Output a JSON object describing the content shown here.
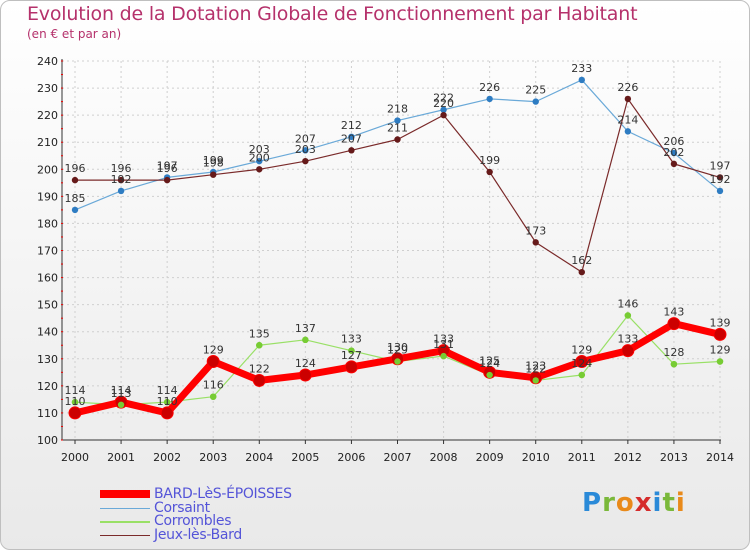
{
  "header": {
    "title": "Evolution de la Dotation Globale de Fonctionnement par Habitant",
    "subtitle": "(en € et par an)"
  },
  "logo": {
    "text": "Proxiti",
    "colors": [
      "#2a8ad8",
      "#7ab83a",
      "#e98a1a",
      "#d52c2c",
      "#2a8ad8",
      "#7ab83a",
      "#e98a1a"
    ]
  },
  "chart_data": {
    "type": "line",
    "x": [
      "2000",
      "2001",
      "2002",
      "2003",
      "2004",
      "2005",
      "2006",
      "2007",
      "2008",
      "2009",
      "2010",
      "2011",
      "2012",
      "2013",
      "2014"
    ],
    "ylim": [
      100,
      240
    ],
    "yticks": [
      100,
      110,
      120,
      130,
      140,
      150,
      160,
      170,
      180,
      190,
      200,
      210,
      220,
      230,
      240
    ],
    "grid": true,
    "legend_position": "bottom-left",
    "series": [
      {
        "name": "BARD-LèS-ÉPOISSES",
        "color": "#ff0000",
        "marker": "#cc0000",
        "values": [
          110,
          114,
          110,
          129,
          122,
          124,
          127,
          130,
          133,
          125,
          123,
          129,
          133,
          143,
          139
        ]
      },
      {
        "name": "Corsaint",
        "color": "#6aa9d8",
        "marker": "#2e7cc2",
        "values": [
          185,
          192,
          197,
          199,
          203,
          207,
          212,
          218,
          222,
          226,
          225,
          233,
          214,
          206,
          192
        ]
      },
      {
        "name": "Corrombles",
        "color": "#99e066",
        "marker": "#77cc33",
        "values": [
          114,
          113,
          114,
          116,
          135,
          137,
          133,
          129,
          131,
          124,
          122,
          124,
          146,
          128,
          129
        ]
      },
      {
        "name": "Jeux-lès-Bard",
        "color": "#7a2a2a",
        "marker": "#661a1a",
        "values": [
          196,
          196,
          196,
          198,
          200,
          203,
          207,
          211,
          220,
          199,
          173,
          162,
          226,
          202,
          197
        ]
      }
    ]
  }
}
